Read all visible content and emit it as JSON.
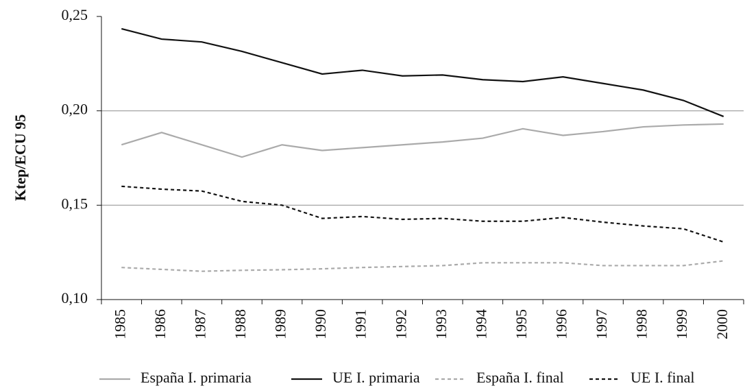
{
  "chart_data": {
    "type": "line",
    "y_label": "Ktep/ECU 95",
    "categories": [
      "1985",
      "1986",
      "1987",
      "1988",
      "1989",
      "1990",
      "1991",
      "1992",
      "1993",
      "1994",
      "1995",
      "1996",
      "1997",
      "1998",
      "1999",
      "2000"
    ],
    "series": [
      {
        "name": "España I. primaria",
        "color": "#aaaaaa",
        "dashed": false,
        "values": [
          0.182,
          0.1885,
          0.182,
          0.1755,
          0.182,
          0.179,
          0.1805,
          0.182,
          0.1835,
          0.1855,
          0.1905,
          0.187,
          0.189,
          0.1915,
          0.1925,
          0.193
        ]
      },
      {
        "name": "UE I. primaria",
        "color": "#111111",
        "dashed": false,
        "values": [
          0.2435,
          0.238,
          0.2365,
          0.2315,
          0.2255,
          0.2195,
          0.2215,
          0.2185,
          0.219,
          0.2165,
          0.2155,
          0.218,
          0.2145,
          0.211,
          0.2055,
          0.197
        ]
      },
      {
        "name": "España I. final",
        "color": "#aaaaaa",
        "dashed": true,
        "values": [
          0.117,
          0.116,
          0.115,
          0.1155,
          0.1158,
          0.1163,
          0.117,
          0.1175,
          0.118,
          0.1195,
          0.1195,
          0.1195,
          0.118,
          0.118,
          0.118,
          0.1205
        ]
      },
      {
        "name": "UE I. final",
        "color": "#111111",
        "dashed": true,
        "values": [
          0.16,
          0.1585,
          0.1575,
          0.152,
          0.15,
          0.143,
          0.144,
          0.1425,
          0.143,
          0.1415,
          0.1415,
          0.1435,
          0.141,
          0.139,
          0.1375,
          0.1305
        ]
      }
    ],
    "ylim": [
      0.1,
      0.25
    ],
    "yticks": [
      {
        "value": 0.1,
        "label": "0,10"
      },
      {
        "value": 0.15,
        "label": "0,15"
      },
      {
        "value": 0.2,
        "label": "0,20"
      },
      {
        "value": 0.25,
        "label": "0,25"
      }
    ],
    "grid": true,
    "legend": "bottom"
  }
}
